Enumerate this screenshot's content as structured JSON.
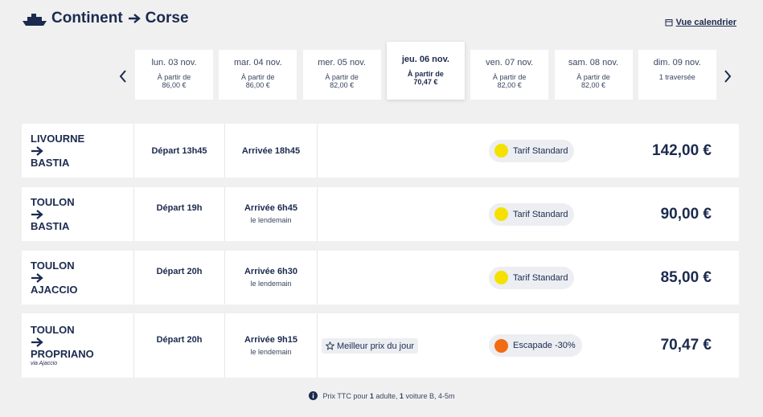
{
  "header": {
    "title_from": "Continent",
    "title_to": "Corse",
    "calendar_link": "Vue calendrier"
  },
  "dates": [
    {
      "day": "lun. 03 nov.",
      "label": "À partir de",
      "price": "86,00 €"
    },
    {
      "day": "mar. 04 nov.",
      "label": "À partir de",
      "price": "86,00 €"
    },
    {
      "day": "mer. 05 nov.",
      "label": "À partir de",
      "price": "82,00 €"
    },
    {
      "day": "jeu. 06 nov.",
      "label": "À partir de",
      "price": "70,47 €",
      "selected": true
    },
    {
      "day": "ven. 07 nov.",
      "label": "À partir de",
      "price": "82,00 €"
    },
    {
      "day": "sam. 08 nov.",
      "label": "À partir de",
      "price": "82,00 €"
    },
    {
      "day": "dim. 09 nov.",
      "label": "1 traversée"
    }
  ],
  "crossings": [
    {
      "from": "LIVOURNE",
      "to": "BASTIA",
      "departure": "Départ 13h45",
      "arrival": "Arrivée 18h45",
      "tariff": "Tarif Standard",
      "tariff_color": "#f5e100",
      "price": "142,00 €"
    },
    {
      "from": "TOULON",
      "to": "BASTIA",
      "departure": "Départ 19h",
      "arrival": "Arrivée 6h45",
      "arrival_note": "le lendemain",
      "tariff": "Tarif Standard",
      "tariff_color": "#f5e100",
      "price": "90,00 €"
    },
    {
      "from": "TOULON",
      "to": "AJACCIO",
      "departure": "Départ 20h",
      "arrival": "Arrivée 6h30",
      "arrival_note": "le lendemain",
      "tariff": "Tarif Standard",
      "tariff_color": "#f5e100",
      "price": "85,00 €"
    },
    {
      "from": "TOULON",
      "to": "PROPRIANO",
      "via": "via Ajaccio",
      "departure": "Départ 20h",
      "arrival": "Arrivée 9h15",
      "arrival_note": "le lendemain",
      "badge": "Meilleur prix du jour",
      "tariff": "Escapade -30%",
      "tariff_color": "#f26b12",
      "price": "70,47 €"
    }
  ],
  "footer": {
    "parts": [
      "Prix TTC pour ",
      "1",
      " adulte, ",
      "1",
      " voiture B, 4-5m"
    ]
  }
}
